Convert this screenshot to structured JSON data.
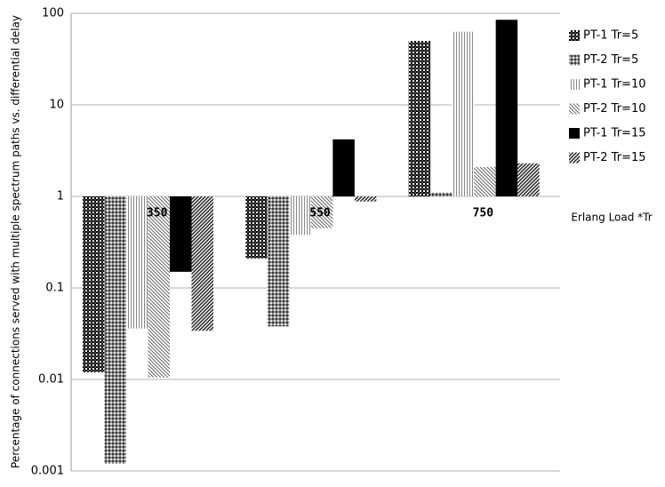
{
  "chart_data": {
    "type": "bar",
    "y_label": "Percentage of connections served with multiple spectrum paths  vs. differential delay",
    "x_label": "Erlang Load *Tr",
    "categories": [
      "350",
      "550",
      "750"
    ],
    "series": [
      {
        "name": "PT-1 Tr=5",
        "color": "#000000",
        "pattern": "checker",
        "values": [
          0.012,
          0.21,
          50
        ]
      },
      {
        "name": "PT-2 Tr=5",
        "color": "#555555",
        "pattern": "dots",
        "values": [
          0.0012,
          0.038,
          1.1
        ]
      },
      {
        "name": "PT-1 Tr=10",
        "color": "#999999",
        "pattern": "vlines",
        "values": [
          0.036,
          0.38,
          63
        ]
      },
      {
        "name": "PT-2 Tr=10",
        "color": "#777777",
        "pattern": "diag",
        "values": [
          0.0105,
          0.45,
          2.1
        ]
      },
      {
        "name": "PT-1 Tr=15",
        "color": "#000000",
        "pattern": "solid",
        "values": [
          0.15,
          4.2,
          85
        ]
      },
      {
        "name": "PT-2 Tr=15",
        "color": "#333333",
        "pattern": "diag2",
        "values": [
          0.034,
          0.88,
          2.3
        ]
      }
    ],
    "ylim": [
      0.001,
      100
    ],
    "yticks": [
      0.001,
      0.01,
      0.1,
      1,
      10,
      100
    ],
    "log_scale": true,
    "grid": true,
    "legend": "right"
  }
}
